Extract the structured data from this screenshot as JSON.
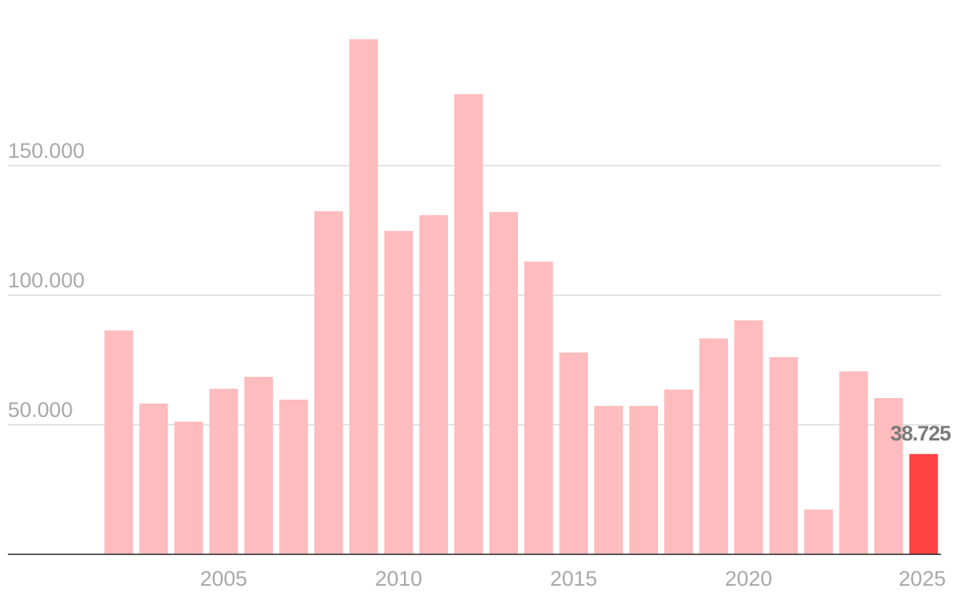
{
  "chart_data": {
    "type": "bar",
    "x": [
      2002,
      2003,
      2004,
      2005,
      2006,
      2007,
      2008,
      2009,
      2010,
      2011,
      2012,
      2013,
      2014,
      2015,
      2016,
      2017,
      2018,
      2019,
      2020,
      2021,
      2022,
      2023,
      2024,
      2025
    ],
    "values": [
      86400,
      58200,
      51200,
      63900,
      68500,
      59700,
      132400,
      198800,
      124800,
      130900,
      177600,
      132100,
      113000,
      77900,
      57300,
      57300,
      63600,
      83300,
      90300,
      76100,
      17300,
      70600,
      60300,
      38725
    ],
    "value_labels": [
      null,
      null,
      null,
      null,
      null,
      null,
      null,
      null,
      null,
      null,
      null,
      null,
      null,
      null,
      null,
      null,
      null,
      null,
      null,
      null,
      null,
      null,
      null,
      "38.725"
    ],
    "colors": [
      "#ffbcbe",
      "#ffbcbe",
      "#ffbcbe",
      "#ffbcbe",
      "#ffbcbe",
      "#ffbcbe",
      "#ffbcbe",
      "#ffbcbe",
      "#ffbcbe",
      "#ffbcbe",
      "#ffbcbe",
      "#ffbcbe",
      "#ffbcbe",
      "#ffbcbe",
      "#ffbcbe",
      "#ffbcbe",
      "#ffbcbe",
      "#ffbcbe",
      "#ffbcbe",
      "#ffbcbe",
      "#ffbcbe",
      "#ffbcbe",
      "#ffbcbe",
      "#ff4343"
    ],
    "xlim": [
      2001.5,
      2025.5
    ],
    "xticks": [
      2005,
      2010,
      2015,
      2020,
      2025
    ],
    "ylim": [
      0,
      200000
    ],
    "yticks": [
      {
        "value": 50000,
        "label": "50.000"
      },
      {
        "value": 100000,
        "label": "100.000"
      },
      {
        "value": 150000,
        "label": "150.000"
      }
    ],
    "grid": true
  }
}
